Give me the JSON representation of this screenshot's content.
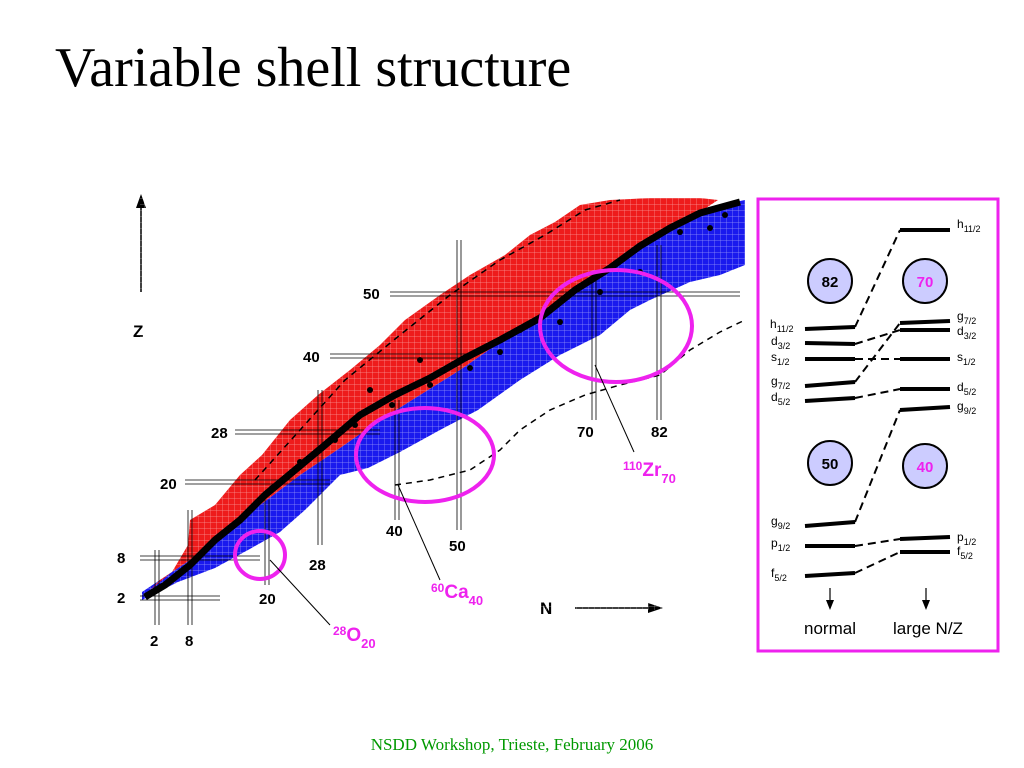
{
  "slide": {
    "title": "Variable shell structure",
    "footer": "NSDD Workshop, Trieste, February 2006"
  },
  "chart_axes": {
    "z_label": "Z",
    "n_label": "N",
    "z_magic": [
      "50",
      "40",
      "28",
      "20",
      "8",
      "2"
    ],
    "n_magic": [
      "2",
      "8",
      "20",
      "28",
      "40",
      "50",
      "70",
      "82"
    ]
  },
  "nuclei": [
    {
      "mass": "28",
      "symbol": "O",
      "neutrons": "20"
    },
    {
      "mass": "60",
      "symbol": "Ca",
      "neutrons": "40"
    },
    {
      "mass": "110",
      "symbol": "Zr",
      "neutrons": "70"
    }
  ],
  "shell_panel": {
    "left_magic_top": "82",
    "right_magic_top": "70",
    "left_magic_bottom": "50",
    "right_magic_bottom": "40",
    "left_levels": [
      {
        "l": "h",
        "j": "11/2"
      },
      {
        "l": "d",
        "j": "3/2"
      },
      {
        "l": "s",
        "j": "1/2"
      },
      {
        "l": "g",
        "j": "7/2"
      },
      {
        "l": "d",
        "j": "5/2"
      },
      {
        "l": "g",
        "j": "9/2"
      },
      {
        "l": "p",
        "j": "1/2"
      },
      {
        "l": "f",
        "j": "5/2"
      }
    ],
    "right_levels": [
      {
        "l": "h",
        "j": "11/2"
      },
      {
        "l": "g",
        "j": "7/2"
      },
      {
        "l": "d",
        "j": "3/2"
      },
      {
        "l": "s",
        "j": "1/2"
      },
      {
        "l": "d",
        "j": "5/2"
      },
      {
        "l": "g",
        "j": "9/2"
      },
      {
        "l": "p",
        "j": "1/2"
      },
      {
        "l": "f",
        "j": "5/2"
      }
    ],
    "normal_label": "normal",
    "large_label": "large N/Z"
  },
  "colors": {
    "stable_rich": "#ee1c1c",
    "neutron_rich": "#1a1aee",
    "magenta": "#ee22ee",
    "panel_border": "#ee22ee",
    "magic_circle_fill": "#ccccff",
    "footer": "#009900"
  }
}
